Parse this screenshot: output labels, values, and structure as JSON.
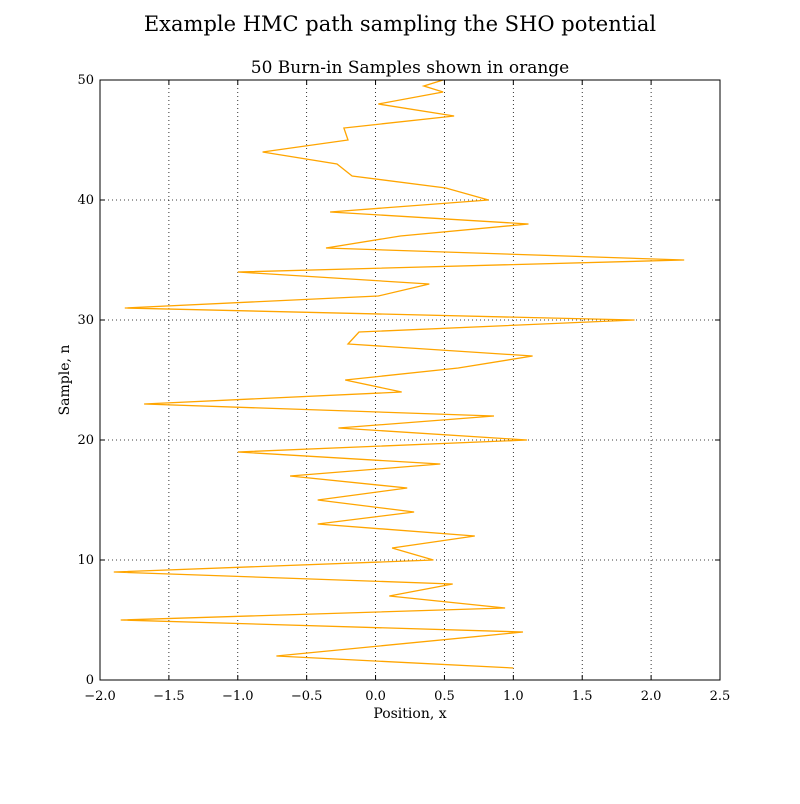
{
  "figure": {
    "suptitle": "Example HMC path sampling the SHO potential"
  },
  "chart_data": {
    "type": "line",
    "title": "50 Burn-in Samples shown in orange",
    "xlabel": "Position, x",
    "ylabel": "Sample, n",
    "xlim": [
      -2.0,
      2.5
    ],
    "ylim": [
      0,
      50
    ],
    "x_ticks": [
      -2.0,
      -1.5,
      -1.0,
      -0.5,
      0.0,
      0.5,
      1.0,
      1.5,
      2.0,
      2.5
    ],
    "y_ticks": [
      0,
      10,
      20,
      30,
      40,
      50
    ],
    "x_tick_labels": [
      "−2.0",
      "−1.5",
      "−1.0",
      "−0.5",
      "0.0",
      "0.5",
      "1.0",
      "1.5",
      "2.0",
      "2.5"
    ],
    "y_tick_labels": [
      "0",
      "10",
      "20",
      "30",
      "40",
      "50"
    ],
    "grid": true,
    "series": [
      {
        "color": "#FFA500",
        "x": [
          1.0,
          -0.72,
          1.07,
          -1.85,
          0.94,
          0.1,
          0.56,
          -1.9,
          0.42,
          0.12,
          0.72,
          -0.42,
          0.28,
          -0.42,
          0.23,
          -0.62,
          0.47,
          -1.0,
          1.1,
          -0.27,
          0.86,
          -1.68,
          0.19,
          -0.22,
          0.6,
          1.14,
          -0.2,
          -0.12,
          1.88,
          -1.82,
          0.02,
          0.39,
          -1.0,
          2.24,
          -0.36,
          0.18,
          1.11,
          -0.33,
          0.82,
          0.51,
          -0.17,
          -0.28,
          -0.82,
          -0.2,
          -0.23,
          0.57,
          0.02,
          0.49,
          0.35,
          0.49
        ],
        "y": [
          1,
          2,
          4,
          5,
          6,
          7,
          8,
          9,
          10,
          11,
          12,
          13,
          14,
          15,
          16,
          17,
          18,
          19,
          20,
          21,
          22,
          23,
          24,
          25,
          26,
          27,
          28,
          29,
          30,
          31,
          32,
          33,
          34,
          35,
          36,
          37,
          38,
          39,
          40,
          41,
          42,
          43,
          44,
          45,
          46,
          47,
          48,
          49,
          49.5,
          50
        ]
      }
    ]
  }
}
